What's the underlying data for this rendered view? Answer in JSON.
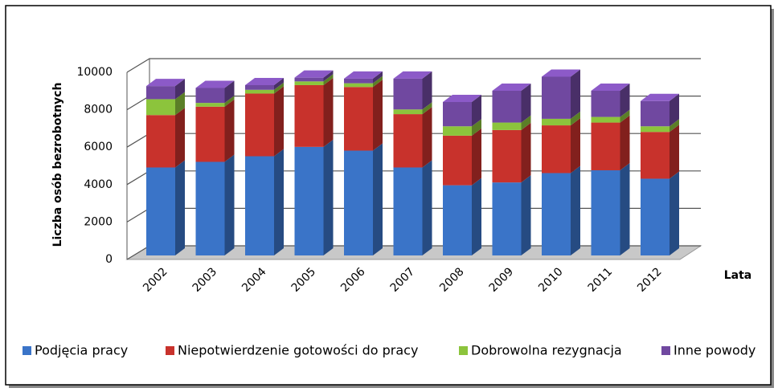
{
  "chart_data": {
    "type": "bar3d_stacked",
    "y_label": "Liczba osób bezrobotnych",
    "x_label": "Lata",
    "categories": [
      "2002",
      "2003",
      "2004",
      "2005",
      "2006",
      "2007",
      "2008",
      "2009",
      "2010",
      "2011",
      "2012"
    ],
    "series": [
      {
        "name": "Podjęcia pracy",
        "color": "#3a74c8",
        "values": [
          4700,
          5000,
          5300,
          5800,
          5600,
          4700,
          3750,
          3900,
          4400,
          4550,
          4100
        ]
      },
      {
        "name": "Niepotwierdzenie gotowości do pracy",
        "color": "#c8322c",
        "values": [
          2800,
          2950,
          3350,
          3300,
          3400,
          2850,
          2650,
          2800,
          2550,
          2550,
          2500
        ]
      },
      {
        "name": "Dobrowolna rezygnacja",
        "color": "#8cc43c",
        "values": [
          850,
          200,
          200,
          200,
          200,
          250,
          500,
          400,
          350,
          300,
          300
        ]
      },
      {
        "name": "Inne powody",
        "color": "#7048a0",
        "values": [
          700,
          800,
          250,
          200,
          250,
          1650,
          1300,
          1700,
          2250,
          1400,
          1350
        ]
      }
    ],
    "ylim": [
      0,
      10000
    ],
    "yticks": [
      0,
      2000,
      4000,
      6000,
      8000,
      10000
    ],
    "grid": true,
    "legend": "bottom"
  }
}
